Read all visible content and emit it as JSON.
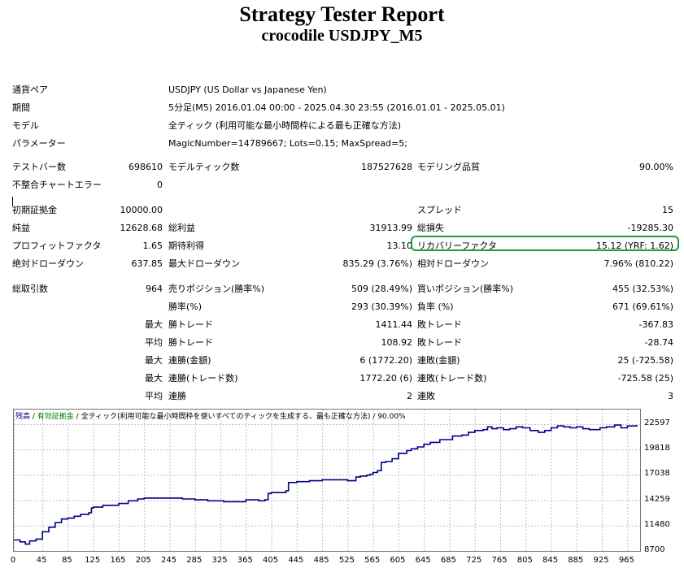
{
  "report": {
    "title": "Strategy Tester Report",
    "subtitle": "crocodile USDJPY_M5"
  },
  "info": [
    {
      "label": "通貨ペア",
      "value": "USDJPY (US Dollar vs Japanese Yen)"
    },
    {
      "label": "期間",
      "value": "5分足(M5) 2016.01.04 00:00 - 2025.04.30 23:55 (2016.01.01 - 2025.05.01)"
    },
    {
      "label": "モデル",
      "value": "全ティック (利用可能な最小時間枠による最も正確な方法)"
    },
    {
      "label": "パラメーター",
      "value": "MagicNumber=14789667; Lots=0.15; MaxSpread=5;"
    }
  ],
  "stats": {
    "bars_label": "テストバー数",
    "bars_value": "698610",
    "ticks_label": "モデルティック数",
    "ticks_value": "187527628",
    "quality_label": "モデリング品質",
    "quality_value": "90.00%",
    "mismatch_label": "不整合チャートエラー",
    "mismatch_value": "0",
    "deposit_label": "初期証拠金",
    "deposit_value": "10000.00",
    "spread_label": "スプレッド",
    "spread_value": "15",
    "net_label": "純益",
    "net_value": "12628.68",
    "gross_profit_label": "総利益",
    "gross_profit_value": "31913.99",
    "gross_loss_label": "総損失",
    "gross_loss_value": "-19285.30",
    "pf_label": "プロフィットファクタ",
    "pf_value": "1.65",
    "expected_label": "期待利得",
    "expected_value": "13.10",
    "recovery_label": "リカバリーファクタ",
    "recovery_value": "15.12 (YRF: 1.62)",
    "abs_dd_label": "絶対ドローダウン",
    "abs_dd_value": "637.85",
    "max_dd_label": "最大ドローダウン",
    "max_dd_value": "835.29 (3.76%)",
    "rel_dd_label": "相対ドローダウン",
    "rel_dd_value": "7.96% (810.22)",
    "trades_label": "総取引数",
    "trades_value": "964",
    "short_label": "売りポジション(勝率%)",
    "short_value": "509 (28.49%)",
    "long_label": "買いポジション(勝率%)",
    "long_value": "455 (32.53%)",
    "win_label": "勝率(%)",
    "win_value": "293 (30.39%)",
    "loss_label": "負率 (%)",
    "loss_value": "671 (69.61%)",
    "max_label": "最大",
    "avg_label": "平均",
    "lw_label": "勝トレード",
    "lw_value": "1411.44",
    "ll_label": "敗トレード",
    "ll_value": "-367.83",
    "aw_label": "勝トレード",
    "aw_value": "108.92",
    "al_label": "敗トレード",
    "al_value": "-28.74",
    "cw_label": "連勝(金額)",
    "cw_value": "6 (1772.20)",
    "cl_label": "連敗(金額)",
    "cl_value": "25 (-725.58)",
    "cw2_label": "連勝(トレード数)",
    "cw2_value": "1772.20 (6)",
    "cl2_label": "連敗(トレード数)",
    "cl2_value": "-725.58 (25)",
    "acw_label": "連勝",
    "acw_value": "2",
    "acl_label": "連敗",
    "acl_value": "3"
  },
  "chart_legend": {
    "balance": "残高",
    "sep1": " / ",
    "equity": "有効証拠金",
    "sep2": " / ",
    "rest": "全ティック(利用可能な最小時間枠を使いすべてのティックを生成する、最も正確な方法) / 90.00%"
  },
  "colors": {
    "balance_line": "#00008b",
    "equity_text": "#008000",
    "highlight": "#1e9a3a",
    "grid": "#bfbfbf"
  },
  "chart_data": {
    "type": "line",
    "title": "",
    "xlabel": "",
    "ylabel": "",
    "x_ticks": [
      0,
      45,
      85,
      125,
      165,
      205,
      245,
      285,
      325,
      365,
      405,
      445,
      485,
      525,
      565,
      605,
      645,
      685,
      725,
      765,
      805,
      845,
      885,
      925,
      965
    ],
    "y_ticks": [
      8700,
      11480,
      14259,
      17038,
      19818,
      22597
    ],
    "xlim": [
      0,
      985
    ],
    "ylim": [
      8700,
      24200
    ],
    "grid": true,
    "series": [
      {
        "values": [
          [
            0,
            9900
          ],
          [
            10,
            9700
          ],
          [
            18,
            9450
          ],
          [
            25,
            9800
          ],
          [
            35,
            10000
          ],
          [
            45,
            10800
          ],
          [
            55,
            11300
          ],
          [
            65,
            11800
          ],
          [
            75,
            12200
          ],
          [
            85,
            12300
          ],
          [
            95,
            12500
          ],
          [
            105,
            12700
          ],
          [
            118,
            12900
          ],
          [
            122,
            13400
          ],
          [
            125,
            13500
          ],
          [
            140,
            13700
          ],
          [
            155,
            13700
          ],
          [
            165,
            13900
          ],
          [
            180,
            14200
          ],
          [
            195,
            14400
          ],
          [
            205,
            14500
          ],
          [
            225,
            14500
          ],
          [
            245,
            14500
          ],
          [
            265,
            14400
          ],
          [
            285,
            14300
          ],
          [
            305,
            14200
          ],
          [
            318,
            14200
          ],
          [
            330,
            14100
          ],
          [
            345,
            14100
          ],
          [
            365,
            14300
          ],
          [
            385,
            14200
          ],
          [
            395,
            14300
          ],
          [
            400,
            15000
          ],
          [
            405,
            15100
          ],
          [
            420,
            15100
          ],
          [
            428,
            15300
          ],
          [
            432,
            16200
          ],
          [
            445,
            16300
          ],
          [
            465,
            16400
          ],
          [
            485,
            16500
          ],
          [
            505,
            16500
          ],
          [
            525,
            16400
          ],
          [
            538,
            16800
          ],
          [
            545,
            16900
          ],
          [
            555,
            17000
          ],
          [
            560,
            17100
          ],
          [
            565,
            17300
          ],
          [
            572,
            17500
          ],
          [
            578,
            18400
          ],
          [
            585,
            18500
          ],
          [
            595,
            18800
          ],
          [
            605,
            19400
          ],
          [
            618,
            19700
          ],
          [
            625,
            19900
          ],
          [
            635,
            20100
          ],
          [
            645,
            20400
          ],
          [
            655,
            20600
          ],
          [
            670,
            20900
          ],
          [
            690,
            21300
          ],
          [
            705,
            21400
          ],
          [
            715,
            21700
          ],
          [
            725,
            21900
          ],
          [
            738,
            22000
          ],
          [
            745,
            22300
          ],
          [
            752,
            22100
          ],
          [
            760,
            22200
          ],
          [
            770,
            22000
          ],
          [
            780,
            22100
          ],
          [
            790,
            22300
          ],
          [
            800,
            22200
          ],
          [
            812,
            21900
          ],
          [
            825,
            21700
          ],
          [
            835,
            21900
          ],
          [
            845,
            22200
          ],
          [
            855,
            22400
          ],
          [
            865,
            22300
          ],
          [
            875,
            22200
          ],
          [
            885,
            22300
          ],
          [
            895,
            22100
          ],
          [
            905,
            22000
          ],
          [
            915,
            22000
          ],
          [
            922,
            22200
          ],
          [
            932,
            22300
          ],
          [
            945,
            22500
          ],
          [
            955,
            22200
          ],
          [
            965,
            22400
          ],
          [
            975,
            22400
          ],
          [
            980,
            22500
          ]
        ]
      }
    ]
  }
}
